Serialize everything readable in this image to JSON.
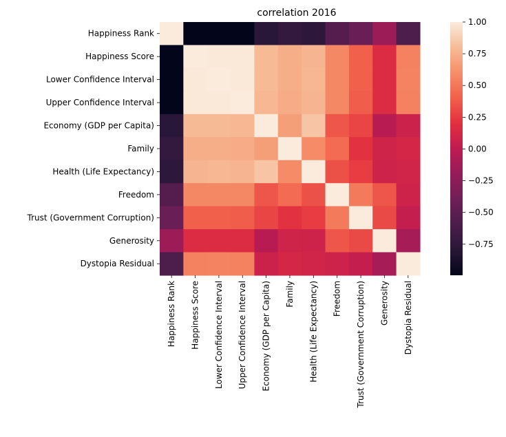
{
  "chart_data": {
    "type": "heatmap",
    "title": "correlation 2016",
    "labels": [
      "Happiness Rank",
      "Happiness Score",
      "Lower Confidence Interval",
      "Upper Confidence Interval",
      "Economy (GDP per Capita)",
      "Family",
      "Health (Life Expectancy)",
      "Freedom",
      "Trust (Government Corruption)",
      "Generosity",
      "Dystopia Residual"
    ],
    "matrix": [
      [
        1.0,
        -0.995,
        -0.994,
        -0.994,
        -0.79,
        -0.74,
        -0.77,
        -0.55,
        -0.43,
        -0.16,
        -0.59
      ],
      [
        -0.995,
        1.0,
        0.99,
        0.99,
        0.79,
        0.74,
        0.77,
        0.57,
        0.4,
        0.16,
        0.54
      ],
      [
        -0.994,
        0.99,
        1.0,
        0.99,
        0.79,
        0.74,
        0.78,
        0.57,
        0.4,
        0.16,
        0.55
      ],
      [
        -0.994,
        0.99,
        0.99,
        1.0,
        0.78,
        0.73,
        0.77,
        0.57,
        0.39,
        0.16,
        0.54
      ],
      [
        -0.79,
        0.79,
        0.79,
        0.78,
        1.0,
        0.67,
        0.84,
        0.36,
        0.29,
        -0.03,
        0.07
      ],
      [
        -0.74,
        0.74,
        0.74,
        0.73,
        0.67,
        1.0,
        0.59,
        0.45,
        0.21,
        0.09,
        0.12
      ],
      [
        -0.77,
        0.77,
        0.78,
        0.77,
        0.84,
        0.59,
        1.0,
        0.34,
        0.25,
        0.08,
        0.1
      ],
      [
        -0.55,
        0.57,
        0.57,
        0.57,
        0.36,
        0.45,
        0.34,
        1.0,
        0.51,
        0.36,
        0.08
      ],
      [
        -0.43,
        0.4,
        0.4,
        0.39,
        0.29,
        0.21,
        0.25,
        0.51,
        1.0,
        0.31,
        0.03
      ],
      [
        -0.16,
        0.16,
        0.16,
        0.16,
        -0.03,
        0.09,
        0.08,
        0.36,
        0.31,
        1.0,
        -0.12
      ],
      [
        -0.59,
        0.54,
        0.55,
        0.54,
        0.07,
        0.12,
        0.1,
        0.08,
        0.03,
        -0.12,
        1.0
      ]
    ],
    "colorbar": {
      "colormap": "rocket",
      "vmin": -0.995,
      "vmax": 1.0,
      "ticks": [
        1.0,
        0.75,
        0.5,
        0.25,
        0.0,
        -0.25,
        -0.5,
        -0.75
      ],
      "tick_labels": [
        "1.00",
        "0.75",
        "0.50",
        "0.25",
        "0.00",
        "−0.25",
        "−0.50",
        "−0.75"
      ]
    }
  }
}
